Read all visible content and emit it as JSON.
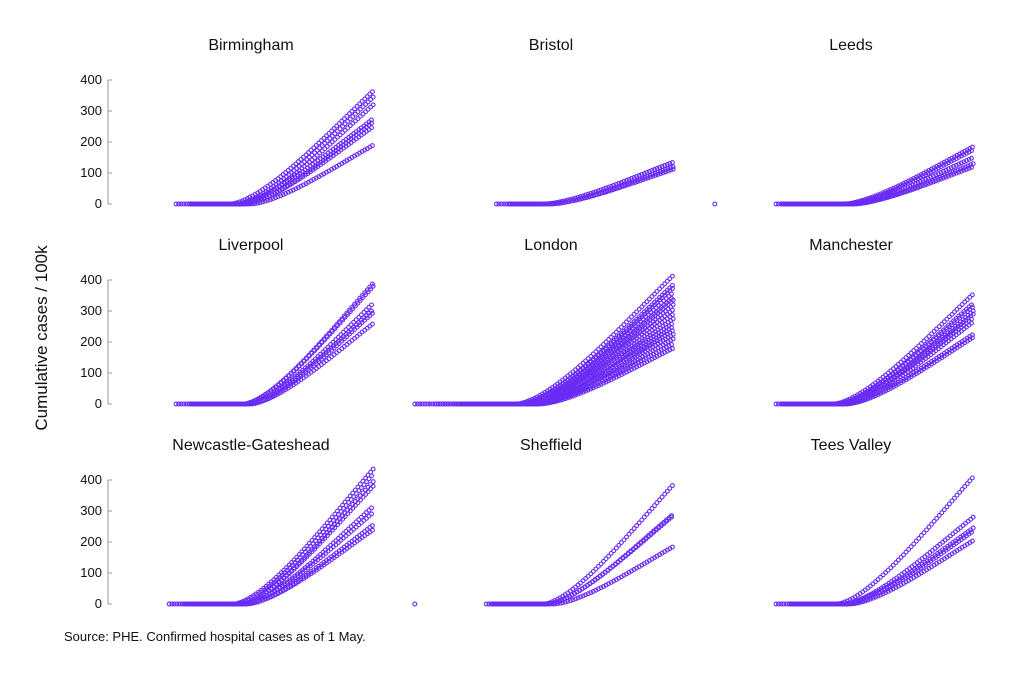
{
  "figure": {
    "ylabel": "Cumulative cases / 100k",
    "source": "Source: PHE. Confirmed hospital cases as of 1 May.",
    "point_color": "#6a2cf5"
  },
  "chart_data": [
    {
      "type": "scatter",
      "title": "Birmingham",
      "ylim": [
        0,
        400
      ],
      "yticks": [
        0,
        100,
        200,
        300,
        400
      ],
      "y_axis_shown": true,
      "x_domain": "days",
      "x_range": [
        0,
        80
      ],
      "grid": false,
      "series": [
        {
          "start": 20,
          "onset": 36,
          "end": 78,
          "peak": 365
        },
        {
          "start": 24,
          "onset": 38,
          "end": 78,
          "peak": 345
        },
        {
          "start": 24,
          "onset": 39,
          "end": 78,
          "peak": 320
        },
        {
          "start": 25,
          "onset": 38,
          "end": 78,
          "peak": 275
        },
        {
          "start": 25,
          "onset": 40,
          "end": 78,
          "peak": 265
        },
        {
          "start": 25,
          "onset": 40,
          "end": 78,
          "peak": 250
        },
        {
          "start": 26,
          "onset": 42,
          "end": 78,
          "peak": 190
        }
      ]
    },
    {
      "type": "scatter",
      "title": "Bristol",
      "ylim": [
        0,
        400
      ],
      "yticks": [
        0,
        100,
        200,
        300,
        400
      ],
      "y_axis_shown": false,
      "x_domain": "days",
      "x_range": [
        0,
        80
      ],
      "grid": false,
      "series": [
        {
          "start": 26,
          "onset": 40,
          "end": 78,
          "peak": 135
        },
        {
          "start": 30,
          "onset": 42,
          "end": 78,
          "peak": 120
        },
        {
          "start": 30,
          "onset": 42,
          "end": 78,
          "peak": 112
        }
      ]
    },
    {
      "type": "scatter",
      "title": "Leeds",
      "ylim": [
        0,
        400
      ],
      "yticks": [
        0,
        100,
        200,
        300,
        400
      ],
      "y_axis_shown": false,
      "x_domain": "days",
      "x_range": [
        0,
        80
      ],
      "grid": false,
      "stray_points": [
        {
          "x": 2,
          "y": 0
        }
      ],
      "series": [
        {
          "start": 20,
          "onset": 40,
          "end": 78,
          "peak": 185
        },
        {
          "start": 22,
          "onset": 41,
          "end": 78,
          "peak": 175
        },
        {
          "start": 22,
          "onset": 42,
          "end": 78,
          "peak": 150
        },
        {
          "start": 24,
          "onset": 43,
          "end": 78,
          "peak": 130
        },
        {
          "start": 25,
          "onset": 43,
          "end": 78,
          "peak": 120
        }
      ]
    },
    {
      "type": "scatter",
      "title": "Liverpool",
      "ylim": [
        0,
        400
      ],
      "yticks": [
        0,
        100,
        200,
        300,
        400
      ],
      "y_axis_shown": true,
      "x_domain": "days",
      "x_range": [
        0,
        80
      ],
      "grid": false,
      "series": [
        {
          "start": 20,
          "onset": 40,
          "end": 78,
          "peak": 390
        },
        {
          "start": 24,
          "onset": 40,
          "end": 78,
          "peak": 380
        },
        {
          "start": 25,
          "onset": 41,
          "end": 78,
          "peak": 325
        },
        {
          "start": 25,
          "onset": 41,
          "end": 78,
          "peak": 305
        },
        {
          "start": 26,
          "onset": 42,
          "end": 78,
          "peak": 295
        },
        {
          "start": 26,
          "onset": 42,
          "end": 78,
          "peak": 260
        }
      ]
    },
    {
      "type": "scatter",
      "title": "London",
      "ylim": [
        0,
        400
      ],
      "yticks": [
        0,
        100,
        200,
        300,
        400
      ],
      "y_axis_shown": false,
      "x_domain": "days",
      "x_range": [
        0,
        80
      ],
      "grid": false,
      "series": [
        {
          "start": 2,
          "onset": 32,
          "end": 78,
          "peak": 415
        },
        {
          "start": 8,
          "onset": 33,
          "end": 78,
          "peak": 385
        },
        {
          "start": 14,
          "onset": 33,
          "end": 78,
          "peak": 375
        },
        {
          "start": 16,
          "onset": 34,
          "end": 78,
          "peak": 360
        },
        {
          "start": 16,
          "onset": 34,
          "end": 78,
          "peak": 345
        },
        {
          "start": 18,
          "onset": 35,
          "end": 78,
          "peak": 335
        },
        {
          "start": 18,
          "onset": 35,
          "end": 78,
          "peak": 320
        },
        {
          "start": 20,
          "onset": 35,
          "end": 78,
          "peak": 305
        },
        {
          "start": 20,
          "onset": 36,
          "end": 78,
          "peak": 290
        },
        {
          "start": 21,
          "onset": 36,
          "end": 78,
          "peak": 275
        },
        {
          "start": 22,
          "onset": 36,
          "end": 78,
          "peak": 262
        },
        {
          "start": 22,
          "onset": 37,
          "end": 78,
          "peak": 250
        },
        {
          "start": 23,
          "onset": 37,
          "end": 78,
          "peak": 238
        },
        {
          "start": 24,
          "onset": 37,
          "end": 78,
          "peak": 225
        },
        {
          "start": 24,
          "onset": 38,
          "end": 78,
          "peak": 210
        },
        {
          "start": 25,
          "onset": 38,
          "end": 78,
          "peak": 195
        },
        {
          "start": 26,
          "onset": 39,
          "end": 78,
          "peak": 180
        }
      ]
    },
    {
      "type": "scatter",
      "title": "Manchester",
      "ylim": [
        0,
        400
      ],
      "yticks": [
        0,
        100,
        200,
        300,
        400
      ],
      "y_axis_shown": false,
      "x_domain": "days",
      "x_range": [
        0,
        80
      ],
      "grid": false,
      "series": [
        {
          "start": 20,
          "onset": 37,
          "end": 78,
          "peak": 355
        },
        {
          "start": 22,
          "onset": 38,
          "end": 78,
          "peak": 325
        },
        {
          "start": 23,
          "onset": 38,
          "end": 78,
          "peak": 315
        },
        {
          "start": 24,
          "onset": 39,
          "end": 78,
          "peak": 300
        },
        {
          "start": 24,
          "onset": 39,
          "end": 78,
          "peak": 290
        },
        {
          "start": 25,
          "onset": 39,
          "end": 78,
          "peak": 278
        },
        {
          "start": 25,
          "onset": 40,
          "end": 78,
          "peak": 265
        },
        {
          "start": 26,
          "onset": 40,
          "end": 78,
          "peak": 225
        },
        {
          "start": 26,
          "onset": 41,
          "end": 78,
          "peak": 215
        }
      ]
    },
    {
      "type": "scatter",
      "title": "Newcastle-Gateshead",
      "ylim": [
        0,
        400
      ],
      "yticks": [
        0,
        100,
        200,
        300,
        400
      ],
      "y_axis_shown": true,
      "x_domain": "days",
      "x_range": [
        0,
        80
      ],
      "grid": false,
      "series": [
        {
          "start": 18,
          "onset": 37,
          "end": 78,
          "peak": 435
        },
        {
          "start": 22,
          "onset": 38,
          "end": 78,
          "peak": 420
        },
        {
          "start": 24,
          "onset": 39,
          "end": 78,
          "peak": 395
        },
        {
          "start": 24,
          "onset": 39,
          "end": 78,
          "peak": 380
        },
        {
          "start": 25,
          "onset": 40,
          "end": 78,
          "peak": 315
        },
        {
          "start": 25,
          "onset": 40,
          "end": 78,
          "peak": 295
        },
        {
          "start": 26,
          "onset": 41,
          "end": 78,
          "peak": 255
        },
        {
          "start": 26,
          "onset": 41,
          "end": 78,
          "peak": 240
        }
      ]
    },
    {
      "type": "scatter",
      "title": "Sheffield",
      "ylim": [
        0,
        400
      ],
      "yticks": [
        0,
        100,
        200,
        300,
        400
      ],
      "y_axis_shown": false,
      "x_domain": "days",
      "x_range": [
        0,
        80
      ],
      "grid": false,
      "stray_points": [
        {
          "x": 2,
          "y": 0
        }
      ],
      "series": [
        {
          "start": 23,
          "onset": 40,
          "end": 78,
          "peak": 385
        },
        {
          "start": 25,
          "onset": 41,
          "end": 78,
          "peak": 290
        },
        {
          "start": 25,
          "onset": 41,
          "end": 78,
          "peak": 285
        },
        {
          "start": 26,
          "onset": 43,
          "end": 78,
          "peak": 185
        }
      ]
    },
    {
      "type": "scatter",
      "title": "Tees Valley",
      "ylim": [
        0,
        400
      ],
      "yticks": [
        0,
        100,
        200,
        300,
        400
      ],
      "y_axis_shown": false,
      "x_domain": "days",
      "x_range": [
        0,
        80
      ],
      "grid": false,
      "series": [
        {
          "start": 20,
          "onset": 38,
          "end": 78,
          "peak": 410
        },
        {
          "start": 24,
          "onset": 40,
          "end": 78,
          "peak": 280
        },
        {
          "start": 24,
          "onset": 40,
          "end": 78,
          "peak": 245
        },
        {
          "start": 25,
          "onset": 41,
          "end": 78,
          "peak": 235
        },
        {
          "start": 26,
          "onset": 42,
          "end": 78,
          "peak": 205
        }
      ]
    }
  ]
}
